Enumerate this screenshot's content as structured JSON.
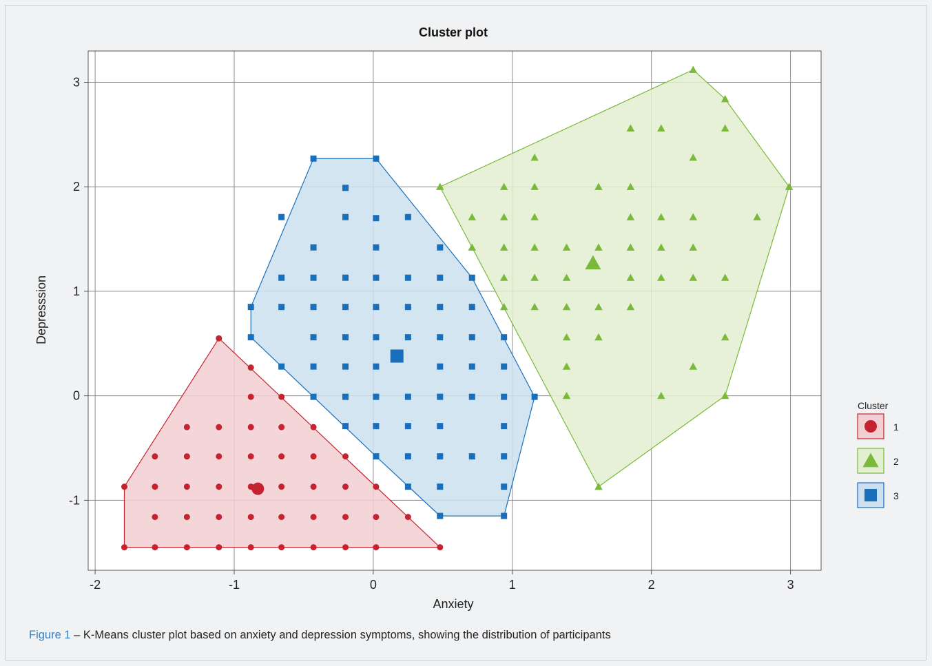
{
  "chart_data": {
    "type": "scatter",
    "title": "Cluster plot",
    "xlabel": "Anxiety",
    "ylabel": "Depresssion",
    "xlim": [
      -2.05,
      3.22
    ],
    "ylim": [
      -1.67,
      3.3
    ],
    "xticks": [
      -2,
      -1,
      0,
      1,
      2,
      3
    ],
    "yticks": [
      -1,
      0,
      1,
      2,
      3
    ],
    "grid": true,
    "legend_title": "Cluster",
    "legend_position": "right",
    "series": [
      {
        "name": "1",
        "marker": "circle",
        "color": "#c4232f",
        "fill": "#f2cfd2",
        "hull": [
          [
            -1.79,
            -1.45
          ],
          [
            0.48,
            -1.45
          ],
          [
            -1.11,
            0.55
          ],
          [
            -1.79,
            -0.87
          ]
        ],
        "centroid": [
          -0.83,
          -0.89
        ],
        "points": [
          [
            -1.79,
            -1.45
          ],
          [
            -1.57,
            -1.45
          ],
          [
            -1.34,
            -1.45
          ],
          [
            -1.11,
            -1.45
          ],
          [
            -0.88,
            -1.45
          ],
          [
            -0.66,
            -1.45
          ],
          [
            -0.43,
            -1.45
          ],
          [
            -0.2,
            -1.45
          ],
          [
            0.02,
            -1.45
          ],
          [
            0.48,
            -1.45
          ],
          [
            -1.57,
            -1.16
          ],
          [
            -1.34,
            -1.16
          ],
          [
            -1.11,
            -1.16
          ],
          [
            -0.88,
            -1.16
          ],
          [
            -0.66,
            -1.16
          ],
          [
            -0.43,
            -1.16
          ],
          [
            -0.2,
            -1.16
          ],
          [
            0.02,
            -1.16
          ],
          [
            0.25,
            -1.16
          ],
          [
            -1.79,
            -0.87
          ],
          [
            -1.57,
            -0.87
          ],
          [
            -1.34,
            -0.87
          ],
          [
            -1.11,
            -0.87
          ],
          [
            -0.88,
            -0.87
          ],
          [
            -0.66,
            -0.87
          ],
          [
            -0.43,
            -0.87
          ],
          [
            -0.2,
            -0.87
          ],
          [
            0.02,
            -0.87
          ],
          [
            -1.57,
            -0.58
          ],
          [
            -1.34,
            -0.58
          ],
          [
            -1.11,
            -0.58
          ],
          [
            -0.88,
            -0.58
          ],
          [
            -0.66,
            -0.58
          ],
          [
            -0.43,
            -0.58
          ],
          [
            -0.2,
            -0.58
          ],
          [
            -1.34,
            -0.3
          ],
          [
            -1.11,
            -0.3
          ],
          [
            -0.88,
            -0.3
          ],
          [
            -0.66,
            -0.3
          ],
          [
            -0.43,
            -0.3
          ],
          [
            -0.88,
            -0.01
          ],
          [
            -0.66,
            -0.01
          ],
          [
            -0.88,
            0.27
          ],
          [
            -1.11,
            0.55
          ]
        ]
      },
      {
        "name": "2",
        "marker": "triangle",
        "color": "#7ab939",
        "fill": "#e2efd1",
        "hull": [
          [
            2.3,
            3.12
          ],
          [
            2.53,
            2.84
          ],
          [
            2.99,
            2.0
          ],
          [
            2.53,
            0.0
          ],
          [
            1.62,
            -0.87
          ],
          [
            0.48,
            2.0
          ]
        ],
        "centroid": [
          1.58,
          1.27
        ],
        "points": [
          [
            2.3,
            3.12
          ],
          [
            2.53,
            2.84
          ],
          [
            1.85,
            2.56
          ],
          [
            2.07,
            2.56
          ],
          [
            2.53,
            2.56
          ],
          [
            1.16,
            2.28
          ],
          [
            2.3,
            2.28
          ],
          [
            0.48,
            2.0
          ],
          [
            0.94,
            2.0
          ],
          [
            1.16,
            2.0
          ],
          [
            1.62,
            2.0
          ],
          [
            1.85,
            2.0
          ],
          [
            2.99,
            2.0
          ],
          [
            0.71,
            1.71
          ],
          [
            0.94,
            1.71
          ],
          [
            1.16,
            1.71
          ],
          [
            1.85,
            1.71
          ],
          [
            2.07,
            1.71
          ],
          [
            2.3,
            1.71
          ],
          [
            2.76,
            1.71
          ],
          [
            0.71,
            1.42
          ],
          [
            0.94,
            1.42
          ],
          [
            1.16,
            1.42
          ],
          [
            1.39,
            1.42
          ],
          [
            1.62,
            1.42
          ],
          [
            1.85,
            1.42
          ],
          [
            2.07,
            1.42
          ],
          [
            2.3,
            1.42
          ],
          [
            0.94,
            1.13
          ],
          [
            1.16,
            1.13
          ],
          [
            1.39,
            1.13
          ],
          [
            1.85,
            1.13
          ],
          [
            2.07,
            1.13
          ],
          [
            2.3,
            1.13
          ],
          [
            2.53,
            1.13
          ],
          [
            0.94,
            0.85
          ],
          [
            1.16,
            0.85
          ],
          [
            1.39,
            0.85
          ],
          [
            1.62,
            0.85
          ],
          [
            1.85,
            0.85
          ],
          [
            1.39,
            0.56
          ],
          [
            1.62,
            0.56
          ],
          [
            2.53,
            0.56
          ],
          [
            1.39,
            0.28
          ],
          [
            2.3,
            0.28
          ],
          [
            1.39,
            0.0
          ],
          [
            2.07,
            0.0
          ],
          [
            2.53,
            0.0
          ],
          [
            1.62,
            -0.87
          ]
        ]
      },
      {
        "name": "3",
        "marker": "square",
        "color": "#1a6fba",
        "fill": "#cde0f0",
        "hull": [
          [
            -0.43,
            2.27
          ],
          [
            0.02,
            2.27
          ],
          [
            0.71,
            1.13
          ],
          [
            1.16,
            -0.01
          ],
          [
            0.94,
            -1.15
          ],
          [
            0.48,
            -1.15
          ],
          [
            0.02,
            -0.58
          ],
          [
            -0.88,
            0.56
          ],
          [
            -0.88,
            0.85
          ]
        ],
        "centroid": [
          0.17,
          0.38
        ],
        "points": [
          [
            -0.43,
            2.27
          ],
          [
            0.02,
            2.27
          ],
          [
            -0.2,
            1.99
          ],
          [
            -0.66,
            1.71
          ],
          [
            -0.2,
            1.71
          ],
          [
            0.02,
            1.7
          ],
          [
            0.25,
            1.71
          ],
          [
            -0.43,
            1.42
          ],
          [
            0.02,
            1.42
          ],
          [
            0.48,
            1.42
          ],
          [
            -0.66,
            1.13
          ],
          [
            -0.43,
            1.13
          ],
          [
            -0.2,
            1.13
          ],
          [
            0.02,
            1.13
          ],
          [
            0.25,
            1.13
          ],
          [
            0.48,
            1.13
          ],
          [
            0.71,
            1.13
          ],
          [
            -0.88,
            0.85
          ],
          [
            -0.66,
            0.85
          ],
          [
            -0.43,
            0.85
          ],
          [
            -0.2,
            0.85
          ],
          [
            0.02,
            0.85
          ],
          [
            0.25,
            0.85
          ],
          [
            0.48,
            0.85
          ],
          [
            0.71,
            0.85
          ],
          [
            -0.88,
            0.56
          ],
          [
            -0.43,
            0.56
          ],
          [
            -0.2,
            0.56
          ],
          [
            0.02,
            0.56
          ],
          [
            0.25,
            0.56
          ],
          [
            0.48,
            0.56
          ],
          [
            0.71,
            0.56
          ],
          [
            0.94,
            0.56
          ],
          [
            -0.66,
            0.28
          ],
          [
            -0.43,
            0.28
          ],
          [
            -0.2,
            0.28
          ],
          [
            0.02,
            0.28
          ],
          [
            0.48,
            0.28
          ],
          [
            0.71,
            0.28
          ],
          [
            0.94,
            0.28
          ],
          [
            -0.43,
            -0.01
          ],
          [
            -0.2,
            -0.01
          ],
          [
            0.02,
            -0.01
          ],
          [
            0.25,
            -0.01
          ],
          [
            0.48,
            -0.01
          ],
          [
            0.71,
            -0.01
          ],
          [
            0.94,
            -0.01
          ],
          [
            1.16,
            -0.01
          ],
          [
            -0.2,
            -0.29
          ],
          [
            0.02,
            -0.29
          ],
          [
            0.25,
            -0.29
          ],
          [
            0.48,
            -0.29
          ],
          [
            0.94,
            -0.29
          ],
          [
            0.02,
            -0.58
          ],
          [
            0.25,
            -0.58
          ],
          [
            0.48,
            -0.58
          ],
          [
            0.71,
            -0.58
          ],
          [
            0.94,
            -0.58
          ],
          [
            0.25,
            -0.87
          ],
          [
            0.48,
            -0.87
          ],
          [
            0.94,
            -0.87
          ],
          [
            0.48,
            -1.15
          ],
          [
            0.94,
            -1.15
          ]
        ]
      }
    ]
  },
  "caption": {
    "figure_label": "Figure 1",
    "text": " – K-Means cluster plot based on anxiety and depression symptoms, showing the distribution of participants"
  }
}
